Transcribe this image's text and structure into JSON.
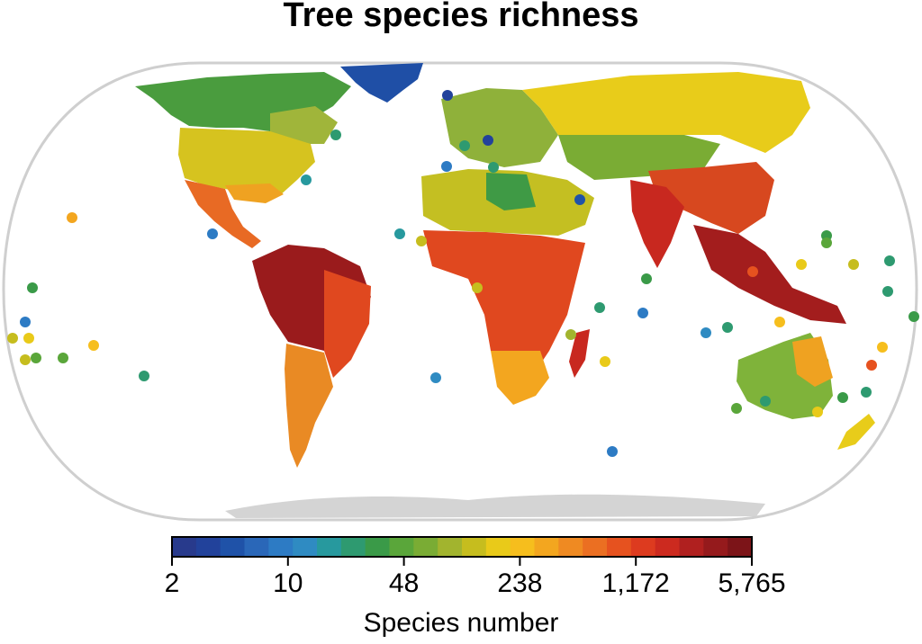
{
  "title": "Tree species richness",
  "legend": {
    "label": "Species number",
    "scale": "log",
    "range": [
      2,
      5765
    ],
    "ticks": [
      "2",
      "10",
      "48",
      "238",
      "1,172",
      "5,765"
    ],
    "colors": [
      "#283a8c",
      "#22429b",
      "#1f52a8",
      "#2a67b8",
      "#2d7bc4",
      "#2f8bc2",
      "#27999e",
      "#2e9a70",
      "#3a9a48",
      "#5aa63a",
      "#7aac34",
      "#a2b42e",
      "#c6bd1e",
      "#e9ca19",
      "#f6be1d",
      "#f3a61f",
      "#ef8a22",
      "#eb6f22",
      "#e6521f",
      "#dd3b1f",
      "#cc2a1f",
      "#b0201f",
      "#951a1c",
      "#7c1418"
    ]
  },
  "map": {
    "projection": "Eckert IV",
    "land_colors": {
      "greenland": "#1f4fa6",
      "canada": "#4a9c3e",
      "usa": "#d6c31f",
      "mexico": "#e86a24",
      "amazonia": "#9a1b1c",
      "south_america_south": "#e98a24",
      "sahara": "#c4bf22",
      "central_africa": "#e0481f",
      "russia": "#e8cc1a",
      "india": "#c8281f",
      "se_asia": "#a31d1d",
      "australia": "#7fb33a",
      "antarctica": "#d4d4d4"
    }
  }
}
